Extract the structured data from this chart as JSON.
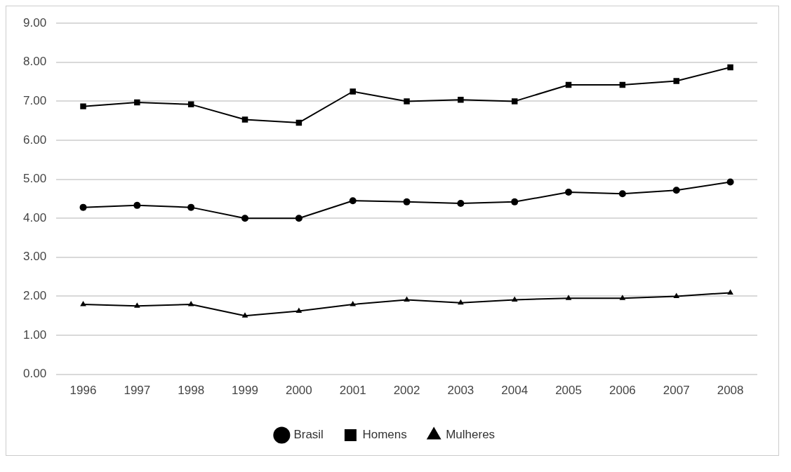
{
  "chart_data": {
    "type": "line",
    "categories": [
      "1996",
      "1997",
      "1998",
      "1999",
      "2000",
      "2001",
      "2002",
      "2003",
      "2004",
      "2005",
      "2006",
      "2007",
      "2008"
    ],
    "series": [
      {
        "name": "Brasil",
        "color": "#000000",
        "marker": "circle",
        "values": [
          4.28,
          4.33,
          4.28,
          4.0,
          4.0,
          4.45,
          4.42,
          4.38,
          4.42,
          4.67,
          4.63,
          4.72,
          4.93
        ]
      },
      {
        "name": "Homens",
        "color": "#000000",
        "marker": "square",
        "values": [
          6.87,
          6.97,
          6.92,
          6.53,
          6.45,
          7.25,
          7.0,
          7.04,
          7.0,
          7.42,
          7.42,
          7.52,
          7.87
        ]
      },
      {
        "name": "Mulheres",
        "color": "#000000",
        "marker": "triangle",
        "values": [
          1.79,
          1.75,
          1.79,
          1.5,
          1.62,
          1.79,
          1.91,
          1.83,
          1.91,
          1.95,
          1.95,
          2.0,
          2.09
        ]
      }
    ],
    "ylim": [
      0,
      9
    ],
    "yticks": [
      {
        "value": 0,
        "label": "0.00"
      },
      {
        "value": 1,
        "label": "1.00"
      },
      {
        "value": 2,
        "label": "2.00"
      },
      {
        "value": 3,
        "label": "3.00"
      },
      {
        "value": 4,
        "label": "4.00"
      },
      {
        "value": 5,
        "label": "5.00"
      },
      {
        "value": 6,
        "label": "6.00"
      },
      {
        "value": 7,
        "label": "7.00"
      },
      {
        "value": 8,
        "label": "8.00"
      },
      {
        "value": 9,
        "label": "9.00"
      }
    ],
    "grid": "y",
    "legend": "bottom",
    "line_style": "solid"
  }
}
